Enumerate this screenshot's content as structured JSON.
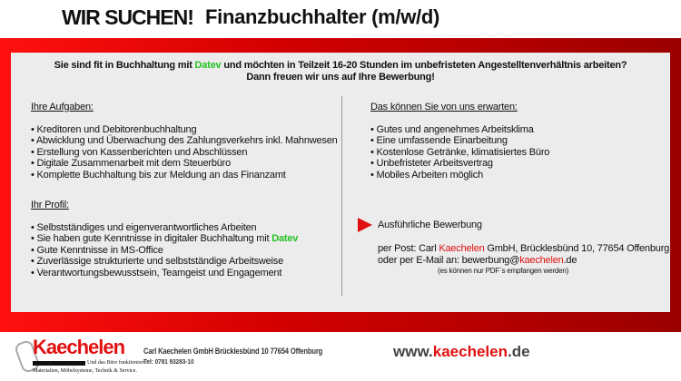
{
  "header": {
    "left": "WIR SUCHEN!",
    "right": "Finanzbuchhalter (m/w/d)"
  },
  "intro": {
    "l1a": "Sie sind fit in Buchhaltung mit ",
    "l1b": "Datev",
    "l1c": " und möchten in Teilzeit 16-20 Stunden im unbefristeten Angestelltenverhältnis arbeiten?",
    "l2": "Dann freuen wir uns auf Ihre Bewerbung!"
  },
  "aufgaben": {
    "title": "Ihre Aufgaben:",
    "items": [
      "Kreditoren und Debitorenbuchhaltung",
      "Abwicklung und Überwachung des Zahlungsverkehrs inkl. Mahnwesen",
      "Erstellung von Kassenberichten und Abschlüssen",
      "Digitale Zusammenarbeit mit dem Steuerbüro",
      "Komplette Buchhaltung bis zur Meldung an das Finanzamt"
    ]
  },
  "profil": {
    "title": "Ihr Profil:",
    "items": [
      "Selbstständiges und eigenverantwortliches Arbeiten",
      "Sie haben gute Kenntnisse in digitaler Buchhaltung mit ",
      "Gute Kenntnisse in MS-Office",
      "Zuverlässige strukturierte und selbstständige Arbeitsweise",
      "Verantwortungsbewusstsein, Teamgeist und Engagement"
    ],
    "datev": "Datev"
  },
  "erwarten": {
    "title": "Das können Sie von uns erwarten:",
    "items": [
      "Gutes und angenehmes Arbeitsklima",
      "Eine umfassende Einarbeitung",
      "Kostenlose Getränke, klimatisiertes Büro",
      "Unbefristeter Arbeitsvertrag",
      "Mobiles Arbeiten möglich"
    ]
  },
  "bewerbung": {
    "title": "Ausführliche Bewerbung",
    "post_a": "per Post: Carl ",
    "post_b": "Kaechelen",
    "post_c": " GmbH, Brücklesbünd 10, 77654 Offenburg",
    "mail_a": "oder per E-Mail an: bewerbung@",
    "mail_b": "kaechelen",
    "mail_c": ".de",
    "note": "(es können nur PDF´s empfangen werden)"
  },
  "footer": {
    "logo_name": "Kaechelen",
    "logo_tag1": "Und das Büro funktioniert.",
    "logo_tag2": "Materialien, Möbelsysteme, Technik & Service.",
    "address": "Carl Kaechelen GmbH Brücklesbünd 10 77654 Offenburg",
    "tel": "Tel: 0781 93283-10",
    "www_a": "www.",
    "www_b": "kaechelen",
    "www_c": ".de"
  },
  "colors": {
    "accent": "#e01010",
    "green": "#22c322",
    "panel": "#ececec"
  }
}
